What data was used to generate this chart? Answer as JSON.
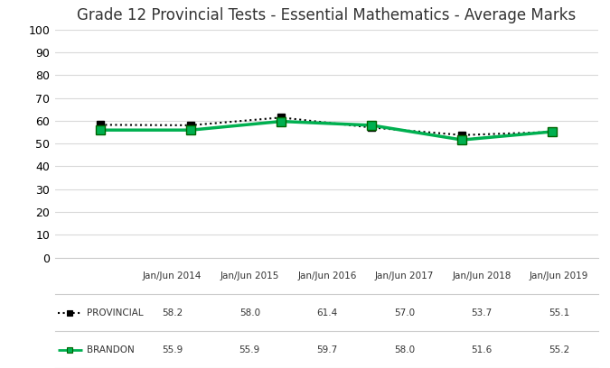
{
  "title": "Grade 12 Provincial Tests - Essential Mathematics - Average Marks",
  "categories": [
    "Jan/Jun 2014",
    "Jan/Jun 2015",
    "Jan/Jun 2016",
    "Jan/Jun 2017",
    "Jan/Jun 2018",
    "Jan/Jun 2019"
  ],
  "provincial_values": [
    58.2,
    58.0,
    61.4,
    57.0,
    53.7,
    55.1
  ],
  "brandon_values": [
    55.9,
    55.9,
    59.7,
    58.0,
    51.6,
    55.2
  ],
  "provincial_label": "PROVINCIAL",
  "brandon_label": "BRANDON",
  "provincial_color": "#000000",
  "brandon_color": "#00b050",
  "brandon_edge_color": "#006400",
  "ylim": [
    0,
    100
  ],
  "yticks": [
    0,
    10,
    20,
    30,
    40,
    50,
    60,
    70,
    80,
    90,
    100
  ],
  "background_color": "#ffffff",
  "grid_color": "#d9d9d9",
  "title_fontsize": 12,
  "table_rows": [
    [
      "58.2",
      "58.0",
      "61.4",
      "57.0",
      "53.7",
      "55.1"
    ],
    [
      "55.9",
      "55.9",
      "59.7",
      "58.0",
      "51.6",
      "55.2"
    ]
  ]
}
